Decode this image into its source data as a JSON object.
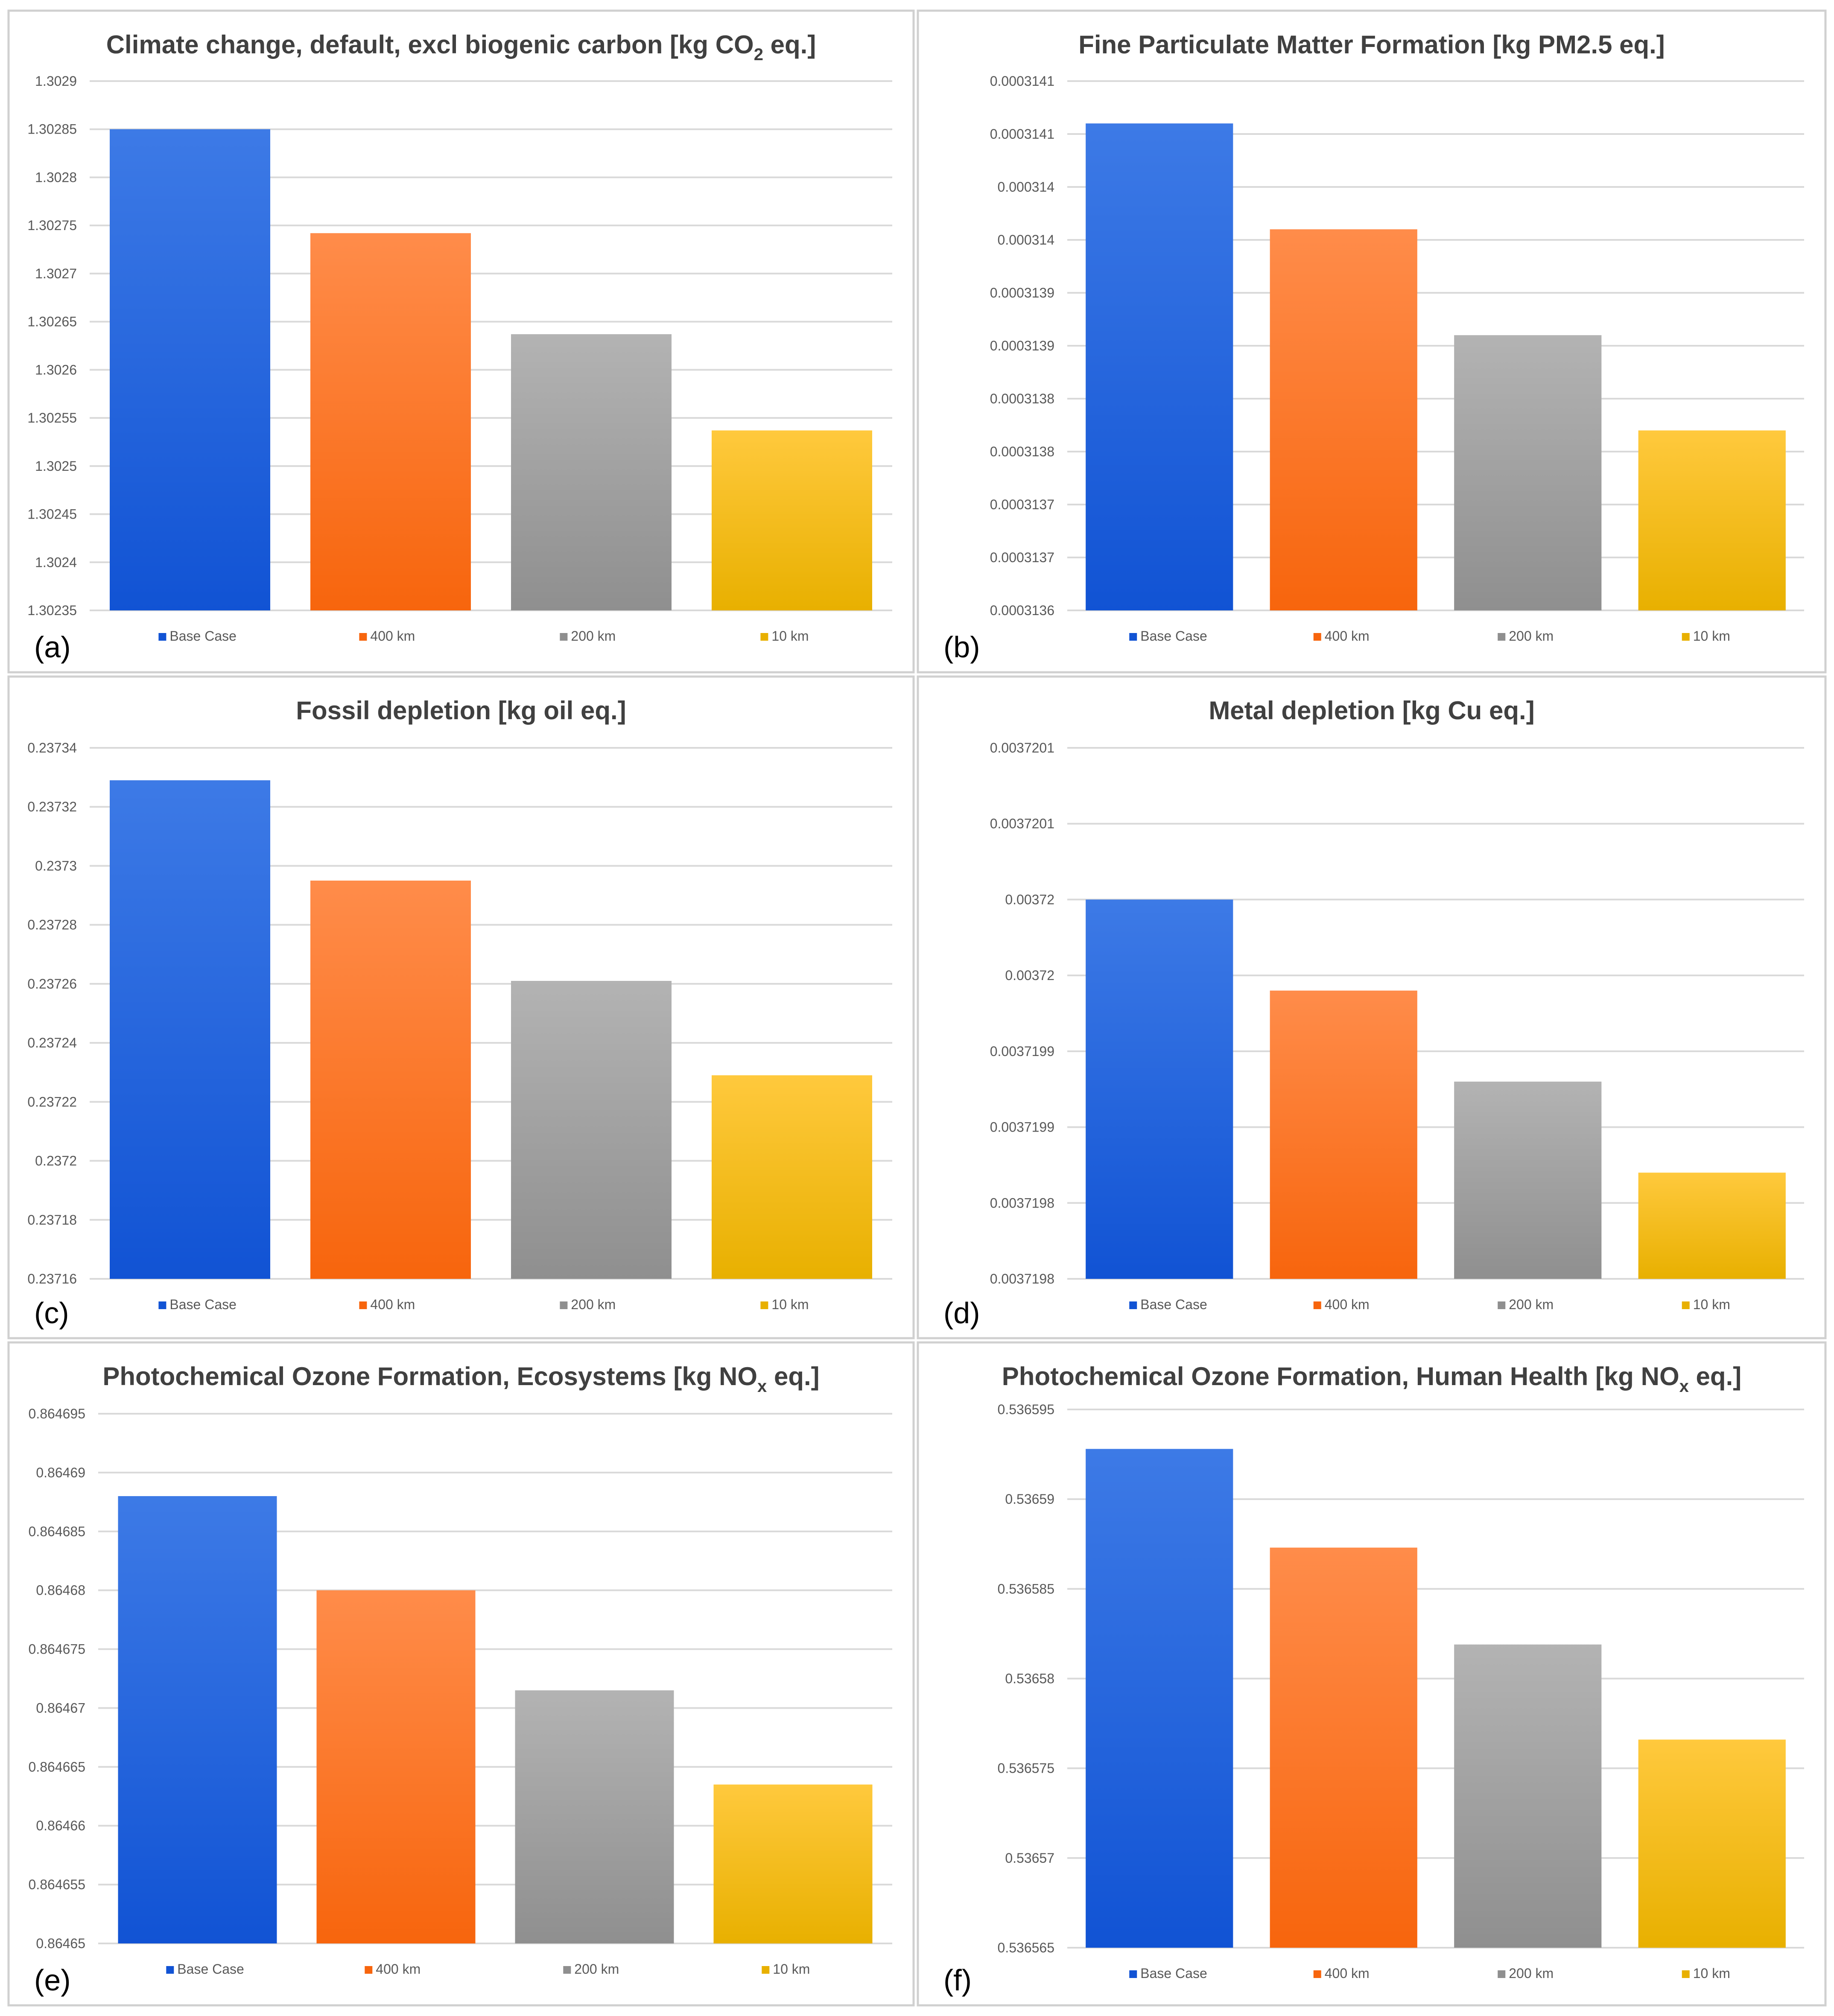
{
  "colors": {
    "base_case_top": "#3d7ae6",
    "base_case_bottom": "#1153d4",
    "km400_top": "#ff8c4a",
    "km400_bottom": "#f7650d",
    "km200_top": "#b3b3b3",
    "km200_bottom": "#8f8f8f",
    "km10_top": "#ffc93d",
    "km10_bottom": "#e8b000",
    "grid": "#d9d9d9",
    "text": "#595959",
    "title": "#404040",
    "border": "#d0d0d0"
  },
  "chart_data": [
    {
      "type": "bar",
      "panel_label": "(a)",
      "title_main": "Climate change, default, excl biogenic carbon [kg CO",
      "title_sub": "2",
      "title_end": " eq.]",
      "categories": [
        "Base Case",
        "400 km",
        "200 km",
        "10 km"
      ],
      "values": [
        1.30285,
        1.302742,
        1.302637,
        1.302537
      ],
      "ylim": [
        1.30235,
        1.3029
      ],
      "yticks": [
        "1.3029",
        "1.30285",
        "1.3028",
        "1.30275",
        "1.3027",
        "1.30265",
        "1.3026",
        "1.30255",
        "1.3025",
        "1.30245",
        "1.3024",
        "1.30235"
      ],
      "legend": [
        "Base Case",
        "400 km",
        "200 km",
        "10 km"
      ]
    },
    {
      "type": "bar",
      "panel_label": "(b)",
      "title_main": "Fine Particulate Matter Formation [kg PM2.5 eq.]",
      "title_sub": "",
      "title_end": "",
      "categories": [
        "Base Case",
        "400 km",
        "200 km",
        "10 km"
      ],
      "values": [
        0.00031406,
        0.00031396,
        0.00031386,
        0.00031377
      ],
      "ylim": [
        0.0003136,
        0.0003141
      ],
      "yticks": [
        "0.0003141",
        "0.0003141",
        "0.000314",
        "0.000314",
        "0.0003139",
        "0.0003139",
        "0.0003138",
        "0.0003138",
        "0.0003137",
        "0.0003137",
        "0.0003136"
      ],
      "legend": [
        "Base Case",
        "400 km",
        "200 km",
        "10 km"
      ]
    },
    {
      "type": "bar",
      "panel_label": "(c)",
      "title_main": "Fossil depletion [kg oil eq.]",
      "title_sub": "",
      "title_end": "",
      "categories": [
        "Base Case",
        "400 km",
        "200 km",
        "10 km"
      ],
      "values": [
        0.237329,
        0.237295,
        0.237261,
        0.237229
      ],
      "ylim": [
        0.23716,
        0.23734
      ],
      "yticks": [
        "0.23734",
        "0.23732",
        "0.2373",
        "0.23728",
        "0.23726",
        "0.23724",
        "0.23722",
        "0.2372",
        "0.23718",
        "0.23716"
      ],
      "legend": [
        "Base Case",
        "400 km",
        "200 km",
        "10 km"
      ]
    },
    {
      "type": "bar",
      "panel_label": "(d)",
      "title_main": "Metal depletion [kg Cu eq.]",
      "title_sub": "",
      "title_end": "",
      "categories": [
        "Base Case",
        "400 km",
        "200 km",
        "10 km"
      ],
      "values": [
        0.00372005,
        0.00371999,
        0.00371993,
        0.00371987
      ],
      "ylim": [
        0.0037198,
        0.00372015
      ],
      "yticks": [
        "0.0037201",
        "0.0037201",
        "0.00372",
        "0.00372",
        "0.0037199",
        "0.0037199",
        "0.0037198",
        "0.0037198"
      ],
      "legend": [
        "Base Case",
        "400 km",
        "200 km",
        "10 km"
      ]
    },
    {
      "type": "bar",
      "panel_label": "(e)",
      "title_main": "Photochemical Ozone Formation, Ecosystems [kg NO",
      "title_sub": "x",
      "title_end": " eq.]",
      "categories": [
        "Base Case",
        "400 km",
        "200 km",
        "10 km"
      ],
      "values": [
        0.864688,
        0.86468,
        0.8646715,
        0.8646635
      ],
      "ylim": [
        0.86465,
        0.864695
      ],
      "yticks": [
        "0.864695",
        "0.86469",
        "0.864685",
        "0.86468",
        "0.864675",
        "0.86467",
        "0.864665",
        "0.86466",
        "0.864655",
        "0.86465"
      ],
      "legend": [
        "Base Case",
        "400 km",
        "200 km",
        "10 km"
      ]
    },
    {
      "type": "bar",
      "panel_label": "(f)",
      "title_main": "Photochemical Ozone Formation, Human Health [kg NO",
      "title_sub": "x",
      "title_end": " eq.]",
      "categories": [
        "Base Case",
        "400 km",
        "200 km",
        "10 km"
      ],
      "values": [
        0.5365928,
        0.5365873,
        0.5365819,
        0.5365766
      ],
      "ylim": [
        0.536565,
        0.536595
      ],
      "yticks": [
        "0.536595",
        "0.53659",
        "0.536585",
        "0.53658",
        "0.536575",
        "0.53657",
        "0.536565"
      ],
      "legend": [
        "Base Case",
        "400 km",
        "200 km",
        "10 km"
      ]
    }
  ]
}
